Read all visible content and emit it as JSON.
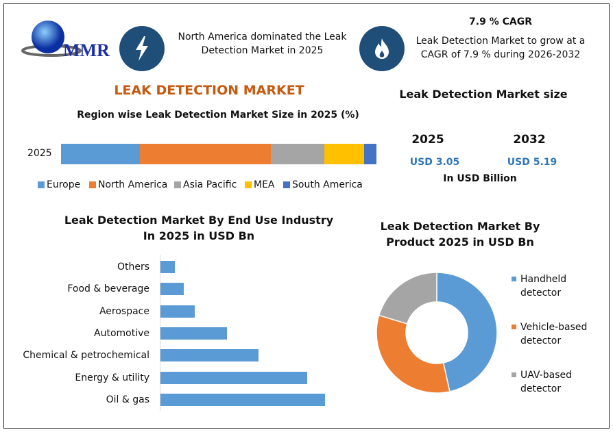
{
  "logo": {
    "text": "MMR"
  },
  "header": {
    "note_left": "North America dominated the Leak Detection Market in 2025",
    "cagr_title": "7.9 % CAGR",
    "cagr_text": "Leak Detection Market to grow at a CAGR of 7.9 % during 2026-2032",
    "icons": [
      "lightning-icon",
      "flame-icon"
    ]
  },
  "main_title": "LEAK DETECTION MARKET",
  "market_size": {
    "title": "Leak Detection Market size",
    "years": [
      "2025",
      "2032"
    ],
    "values": [
      "USD 3.05",
      "USD 5.19"
    ],
    "unit": "In USD Billion"
  },
  "colors": {
    "title": "#c55a11",
    "navy": "#1f4e79",
    "value": "#2e75b6"
  },
  "chart_data": [
    {
      "type": "bar",
      "orientation": "horizontal",
      "stacked": true,
      "title": "Region wise Leak Detection Market Size in 2025 (%)",
      "categories": [
        "2025"
      ],
      "series": [
        {
          "name": "Europe",
          "values": [
            25
          ],
          "color": "#5b9bd5"
        },
        {
          "name": "North America",
          "values": [
            41.5
          ],
          "color": "#ed7d31"
        },
        {
          "name": "Asia Pacific",
          "values": [
            17
          ],
          "color": "#a5a5a5"
        },
        {
          "name": "MEA",
          "values": [
            12.5
          ],
          "color": "#ffc000"
        },
        {
          "name": "South America",
          "values": [
            4
          ],
          "color": "#4472c4"
        }
      ],
      "legend": "bottom"
    },
    {
      "type": "bar",
      "orientation": "horizontal",
      "title": "Leak Detection Market By End Use Industry In 2025 in USD Bn",
      "categories": [
        "Others",
        "Food & beverage",
        "Aerospace",
        "Automotive",
        "Chemical & petrochemical",
        "Energy & utility",
        "Oil & gas"
      ],
      "values": [
        0.08,
        0.13,
        0.19,
        0.37,
        0.55,
        0.82,
        0.92
      ],
      "color": "#5b9bd5"
    },
    {
      "type": "pie",
      "donut": true,
      "title": "Leak Detection Market By Product 2025 in USD Bn",
      "categories": [
        "Handheld detector",
        "Vehicle-based detector",
        "UAV-based detector"
      ],
      "values": [
        1.42,
        1.01,
        0.62
      ],
      "colors": [
        "#5b9bd5",
        "#ed7d31",
        "#a5a5a5"
      ],
      "legend": "right"
    }
  ]
}
